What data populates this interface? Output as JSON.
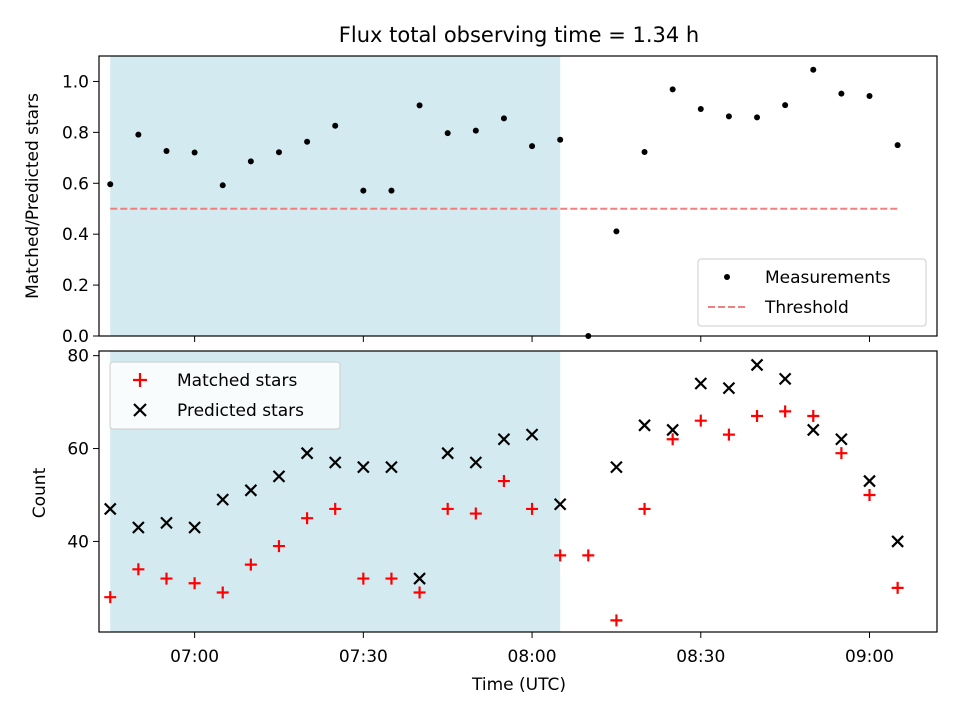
{
  "figure": {
    "title": "Flux total observing time = 1.34 h",
    "xlabel": "Time (UTC)",
    "x_ticks": [
      "07:00",
      "07:30",
      "08:00",
      "08:30",
      "09:00"
    ]
  },
  "colors": {
    "shade": "#d3eaf0",
    "matched": "#ff0000",
    "predicted": "#000000",
    "threshold": "#f08080",
    "measurements": "#000000"
  },
  "chart_data": [
    {
      "type": "scatter",
      "ylabel": "Matched/Predicted stars",
      "xlim": [
        "06:43",
        "09:12"
      ],
      "ylim": [
        0,
        1.1
      ],
      "yticks": [
        "0.0",
        "0.2",
        "0.4",
        "0.6",
        "0.8",
        "1.0"
      ],
      "shaded_region": [
        "06:45",
        "08:05"
      ],
      "legend": {
        "position": "lower-right",
        "entries": [
          "Measurements",
          "Threshold"
        ]
      },
      "threshold": {
        "name": "Threshold",
        "value": 0.5,
        "x_range": [
          "06:45",
          "09:05"
        ]
      },
      "series": [
        {
          "name": "Measurements",
          "marker": "dot",
          "x": [
            "06:45",
            "06:50",
            "06:55",
            "07:00",
            "07:05",
            "07:10",
            "07:15",
            "07:20",
            "07:25",
            "07:30",
            "07:35",
            "07:40",
            "07:45",
            "07:50",
            "07:55",
            "08:00",
            "08:05",
            "08:10",
            "08:15",
            "08:20",
            "08:25",
            "08:30",
            "08:35",
            "08:40",
            "08:45",
            "08:50",
            "08:55",
            "09:00",
            "09:05"
          ],
          "y": [
            0.596,
            0.791,
            0.727,
            0.721,
            0.592,
            0.686,
            0.722,
            0.763,
            0.826,
            0.571,
            0.571,
            0.906,
            0.797,
            0.807,
            0.855,
            0.746,
            0.771,
            0.0,
            0.411,
            0.723,
            0.969,
            0.892,
            0.863,
            0.859,
            0.907,
            1.046,
            0.952,
            0.943,
            0.75
          ]
        }
      ]
    },
    {
      "type": "scatter",
      "ylabel": "Count",
      "xlim": [
        "06:43",
        "09:12"
      ],
      "ylim": [
        20.5,
        81
      ],
      "yticks": [
        "40",
        "60",
        "80"
      ],
      "shaded_region": [
        "06:45",
        "08:05"
      ],
      "legend": {
        "position": "upper-left",
        "entries": [
          "Matched stars",
          "Predicted stars"
        ]
      },
      "series": [
        {
          "name": "Matched stars",
          "marker": "plus",
          "x": [
            "06:45",
            "06:50",
            "06:55",
            "07:00",
            "07:05",
            "07:10",
            "07:15",
            "07:20",
            "07:25",
            "07:30",
            "07:35",
            "07:40",
            "07:45",
            "07:50",
            "07:55",
            "08:00",
            "08:05",
            "08:10",
            "08:15",
            "08:20",
            "08:25",
            "08:30",
            "08:35",
            "08:40",
            "08:45",
            "08:50",
            "08:55",
            "09:00",
            "09:05"
          ],
          "y": [
            28,
            34,
            32,
            31,
            29,
            35,
            39,
            45,
            47,
            32,
            32,
            29,
            47,
            46,
            53,
            47,
            37,
            37,
            23,
            47,
            62,
            66,
            63,
            67,
            68,
            67,
            59,
            50,
            30
          ]
        },
        {
          "name": "Predicted stars",
          "marker": "x",
          "x": [
            "06:45",
            "06:50",
            "06:55",
            "07:00",
            "07:05",
            "07:10",
            "07:15",
            "07:20",
            "07:25",
            "07:30",
            "07:35",
            "07:40",
            "07:45",
            "07:50",
            "07:55",
            "08:00",
            "08:05",
            "08:15",
            "08:20",
            "08:25",
            "08:30",
            "08:35",
            "08:40",
            "08:45",
            "08:50",
            "08:55",
            "09:00",
            "09:05"
          ],
          "y": [
            47,
            43,
            44,
            43,
            49,
            51,
            54,
            59,
            57,
            56,
            56,
            32,
            59,
            57,
            62,
            63,
            48,
            56,
            65,
            64,
            74,
            73,
            78,
            75,
            64,
            62,
            53,
            40
          ]
        }
      ]
    }
  ]
}
